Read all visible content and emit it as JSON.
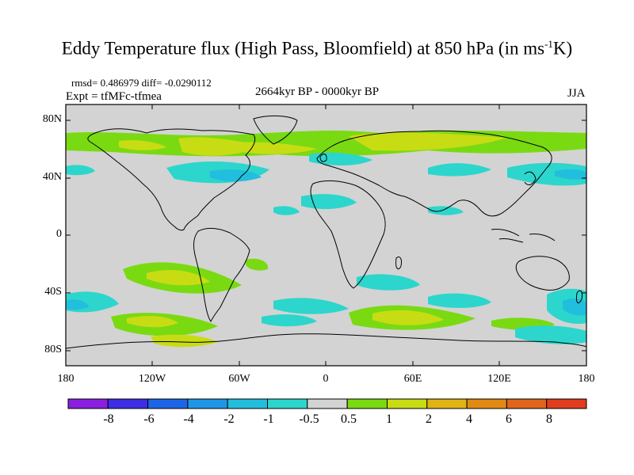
{
  "title": {
    "main": "Eddy Temperature flux (High Pass, Bloomfield) at 850 hPa (in ms",
    "sup": "-1",
    "end": "K)"
  },
  "stats": "rmsd= 0.486979 diff= -0.0290112",
  "expt": "Expt = tfMFc-tfmea",
  "period": "2664kyr BP - 0000kyr BP",
  "season": "JJA",
  "axes": {
    "lat_labels": [
      "80N",
      "40N",
      "0",
      "40S",
      "80S"
    ],
    "lon_labels": [
      "180",
      "120W",
      "60W",
      "0",
      "60E",
      "120E",
      "180"
    ]
  },
  "colorbar": {
    "labels": [
      "-8",
      "-6",
      "-4",
      "-2",
      "-1",
      "-0.5",
      "0.5",
      "1",
      "2",
      "4",
      "6",
      "8"
    ],
    "colors": [
      "#8a1fe0",
      "#3d2ee6",
      "#1e64e6",
      "#1e96e6",
      "#22bede",
      "#2cd6cc",
      "#d3d3d3",
      "#7ada12",
      "#c8dc14",
      "#e0b414",
      "#e08a14",
      "#e0641a",
      "#e03c1e"
    ]
  },
  "map_colors": {
    "background": "#d3d3d3",
    "green": "#7ada12",
    "yellow": "#c8dc14",
    "cyan": "#2cd6cc",
    "blue": "#22bede",
    "coast": "#000000"
  }
}
